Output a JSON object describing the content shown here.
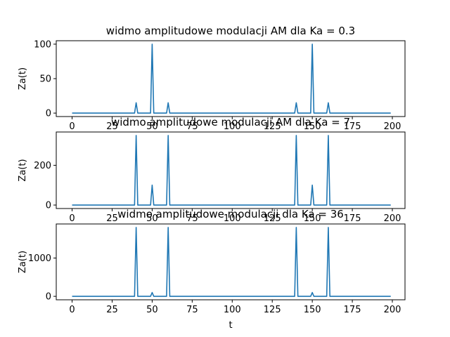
{
  "chart_data": [
    {
      "type": "line",
      "title": "widmo amplitudowe modulacji AM dla Ka = 0.3",
      "xlabel": "",
      "ylabel": "Za(t)",
      "xlim": [
        -9.9,
        207.9
      ],
      "ylim": [
        -5,
        105
      ],
      "xticks": [
        0,
        25,
        50,
        75,
        100,
        125,
        150,
        175,
        200
      ],
      "yticks": [
        0,
        50,
        100
      ],
      "color": "#1f77b4",
      "series": [
        {
          "x": [
            0,
            39,
            40,
            41,
            49,
            50,
            51,
            59,
            60,
            61,
            139,
            140,
            141,
            149,
            150,
            151,
            159,
            160,
            161,
            199
          ],
          "values": [
            0,
            0,
            15,
            0,
            0,
            100,
            0,
            0,
            15,
            0,
            0,
            15,
            0,
            0,
            100,
            0,
            0,
            15,
            0,
            0
          ]
        }
      ]
    },
    {
      "type": "line",
      "title": "widmo amplitudowe modulacji AM dla Ka = 7",
      "xlabel": "",
      "ylabel": "Za(t)",
      "xlim": [
        -9.9,
        207.9
      ],
      "ylim": [
        -17.5,
        367.5
      ],
      "xticks": [
        0,
        25,
        50,
        75,
        100,
        125,
        150,
        175,
        200
      ],
      "yticks": [
        0,
        200
      ],
      "color": "#1f77b4",
      "series": [
        {
          "x": [
            0,
            39,
            40,
            41,
            49,
            50,
            51,
            59,
            60,
            61,
            139,
            140,
            141,
            149,
            150,
            151,
            159,
            160,
            161,
            199
          ],
          "values": [
            0,
            0,
            350,
            0,
            0,
            100,
            0,
            0,
            350,
            0,
            0,
            350,
            0,
            0,
            100,
            0,
            0,
            350,
            0,
            0
          ]
        }
      ]
    },
    {
      "type": "line",
      "title": "widmo amplitudowe modulacji dla Ka = 36",
      "xlabel": "t",
      "ylabel": "Za(t)",
      "xlim": [
        -9.9,
        207.9
      ],
      "ylim": [
        -90,
        1890
      ],
      "xticks": [
        0,
        25,
        50,
        75,
        100,
        125,
        150,
        175,
        200
      ],
      "yticks": [
        0,
        1000
      ],
      "color": "#1f77b4",
      "series": [
        {
          "x": [
            0,
            39,
            40,
            41,
            49,
            50,
            51,
            59,
            60,
            61,
            139,
            140,
            141,
            149,
            150,
            151,
            159,
            160,
            161,
            199
          ],
          "values": [
            0,
            0,
            1800,
            0,
            0,
            100,
            0,
            0,
            1800,
            0,
            0,
            1800,
            0,
            0,
            100,
            0,
            0,
            1800,
            0,
            0
          ]
        }
      ]
    }
  ]
}
